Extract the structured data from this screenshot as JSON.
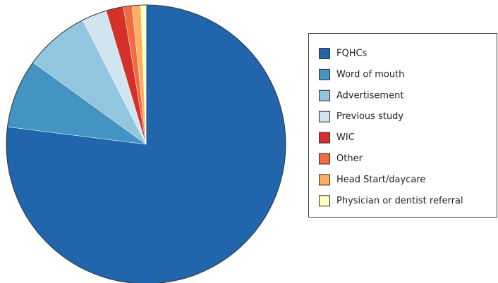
{
  "chart_data": {
    "type": "pie",
    "categories": [
      "FQHCs",
      "Word of mouth",
      "Advertisement",
      "Previous study",
      "WIC",
      "Other",
      "Head Start/daycare",
      "Physician or dentist referral"
    ],
    "values": [
      77,
      8,
      7.5,
      2.9,
      2,
      1,
      1,
      0.6
    ],
    "colors": [
      "#2166ac",
      "#4393c3",
      "#92c5de",
      "#d1e5f0",
      "#d6302a",
      "#f06a42",
      "#fdae61",
      "#ffffbf"
    ],
    "legend": "right"
  }
}
